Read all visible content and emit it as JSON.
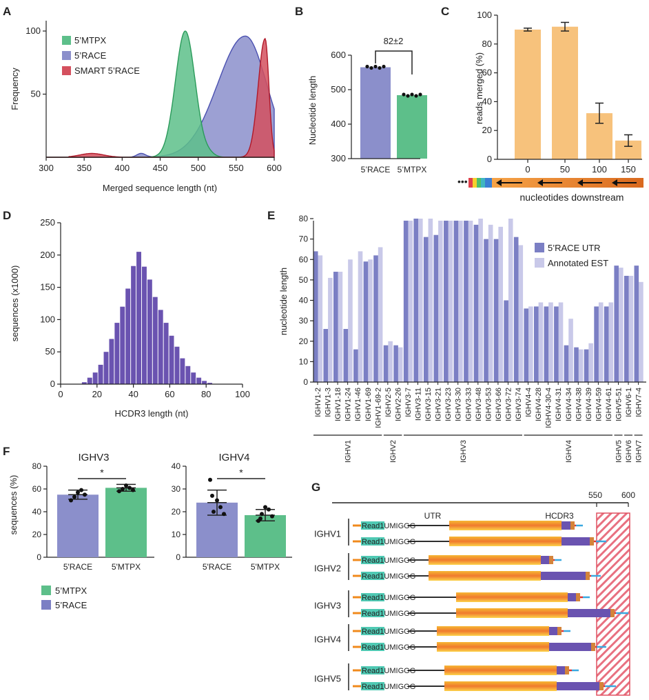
{
  "panels": {
    "A": "A",
    "B": "B",
    "C": "C",
    "D": "D",
    "E": "E",
    "F": "F",
    "G": "G"
  },
  "colors": {
    "mtpx": "#5dbf8a",
    "race": "#8b8fcb",
    "smart": "#d4505e",
    "orange": "#f7c27c",
    "purple": "#6a53b0",
    "lightpurple": "#c9c9e9",
    "hatch": "#e05060",
    "teal": "#4fc9b3",
    "blue": "#3aa8e0",
    "red": "#e03030"
  },
  "chart_data": [
    {
      "id": "A",
      "type": "area",
      "title": "",
      "xlabel": "Merged sequence length (nt)",
      "ylabel": "Frequency",
      "xlim": [
        300,
        600
      ],
      "ylim": [
        0,
        100
      ],
      "xticks": [
        "300",
        "350",
        "400",
        "450",
        "500",
        "550",
        "600"
      ],
      "yticks": [
        "50",
        "100"
      ],
      "legend": [
        "5’MTPX",
        "5’RACE",
        "SMART 5’RACE"
      ],
      "series": [
        {
          "name": "5’MTPX",
          "peak": 483,
          "width": 13,
          "height": 100
        },
        {
          "name": "5’RACE",
          "peak": 562,
          "width": 28,
          "height": 96
        },
        {
          "name": "SMART 5’RACE",
          "peak": 588,
          "width": 9,
          "height": 94
        }
      ]
    },
    {
      "id": "B",
      "type": "bar",
      "ylabel": "Nucleotide length",
      "categories": [
        "5’RACE",
        "5’MTPX"
      ],
      "values": [
        565,
        484
      ],
      "ylim": [
        300,
        600
      ],
      "yticks": [
        "300",
        "400",
        "500",
        "600"
      ],
      "annotation": "82±2"
    },
    {
      "id": "C",
      "type": "bar",
      "ylabel": "reads merged (%)",
      "xlabel": "nucleotides downstream",
      "categories": [
        "0",
        "50",
        "100",
        "150"
      ],
      "values": [
        90,
        92,
        32,
        13
      ],
      "errors": [
        1,
        3,
        7,
        4
      ],
      "ylim": [
        0,
        100
      ],
      "yticks": [
        "0",
        "20",
        "40",
        "60",
        "80",
        "100"
      ],
      "dots": "•••"
    },
    {
      "id": "D",
      "type": "bar",
      "xlabel": "HCDR3 length (nt)",
      "ylabel": "sequences (x1000)",
      "xlim": [
        0,
        100
      ],
      "ylim": [
        0,
        250
      ],
      "xticks": [
        "0",
        "20",
        "40",
        "60",
        "80",
        "100"
      ],
      "yticks": [
        "0",
        "50",
        "100",
        "150",
        "200",
        "250"
      ],
      "x": [
        13,
        16,
        19,
        22,
        25,
        28,
        31,
        34,
        37,
        40,
        43,
        46,
        49,
        52,
        55,
        58,
        61,
        64,
        67,
        70,
        73,
        76,
        79,
        82
      ],
      "values": [
        3,
        10,
        18,
        30,
        50,
        70,
        95,
        120,
        148,
        183,
        205,
        182,
        162,
        135,
        115,
        95,
        75,
        58,
        40,
        28,
        18,
        10,
        5,
        2
      ]
    },
    {
      "id": "E",
      "type": "bar",
      "ylabel": "nucleotide length",
      "ylim": [
        0,
        80
      ],
      "yticks": [
        "0",
        "10",
        "20",
        "30",
        "40",
        "50",
        "60",
        "70",
        "80"
      ],
      "legend": [
        "5’RACE UTR",
        "Annotated EST"
      ],
      "categories": [
        "IGHV1-2",
        "IGHV1-3",
        "IGHV1-18",
        "IGHV1-24",
        "IGHV1-46",
        "IGHV1-69",
        "IGHV1-69-2",
        "IGHV2-5",
        "IGHV2-26",
        "IGHV3-7",
        "IGHV3-11",
        "IGHV3-15",
        "IGHV3-21",
        "IGHV3-23",
        "IGHV3-30",
        "IGHV3-33",
        "IGHV3-48",
        "IGHV3-53",
        "IGHV3-66",
        "IGHV3-72",
        "IGHV3-74",
        "IGHV4-4",
        "IGHV4-28",
        "IGHV4-30-4",
        "IGHV4-31",
        "IGHV4-34",
        "IGHV4-38",
        "IGHV4-39",
        "IGHV4-59",
        "IGHV4-61",
        "IGHV5-51",
        "IGHV6-1",
        "IGHV7-4"
      ],
      "series": [
        {
          "name": "5’RACE UTR",
          "values": [
            64,
            26,
            54,
            26,
            16,
            59,
            62,
            18,
            18,
            79,
            80,
            71,
            72,
            79,
            79,
            79,
            77,
            70,
            70,
            40,
            71,
            36,
            37,
            37,
            37,
            18,
            17,
            16,
            37,
            37,
            57,
            52,
            57
          ]
        },
        {
          "name": "Annotated EST",
          "values": [
            62,
            51,
            54,
            60,
            64,
            60,
            66,
            20,
            17,
            79,
            80,
            80,
            79,
            79,
            79,
            79,
            80,
            77,
            76,
            80,
            67,
            37,
            39,
            39,
            39,
            31,
            16,
            19,
            39,
            39,
            56,
            52,
            49
          ]
        }
      ],
      "groups": [
        "IGHV1",
        "IGHV2",
        "IGHV3",
        "IGHV4",
        "IGHV5",
        "IGHV6",
        "IGHV7"
      ]
    },
    {
      "id": "F1",
      "type": "bar",
      "title": "IGHV3",
      "ylabel": "sequences (%)",
      "categories": [
        "5'RACE",
        "5'MTPX"
      ],
      "values": [
        55,
        61
      ],
      "errors": [
        4,
        3
      ],
      "ylim": [
        0,
        80
      ],
      "yticks": [
        "0",
        "20",
        "40",
        "60",
        "80"
      ],
      "annotation": "*",
      "points": [
        [
          50,
          53,
          57,
          59,
          55
        ],
        [
          58,
          60,
          63,
          61,
          59
        ]
      ]
    },
    {
      "id": "F2",
      "type": "bar",
      "title": "IGHV4",
      "categories": [
        "5'RACE",
        "5'MTPX"
      ],
      "values": [
        24,
        18.5
      ],
      "errors": [
        5.5,
        2.5
      ],
      "ylim": [
        0,
        40
      ],
      "yticks": [
        "0",
        "10",
        "20",
        "30",
        "40"
      ],
      "annotation": "*",
      "points": [
        [
          34,
          20,
          25,
          22,
          19,
          27
        ],
        [
          16,
          19,
          22,
          21,
          18,
          17
        ]
      ]
    }
  ],
  "F_legend": [
    "5’MTPX",
    "5’RACE"
  ],
  "G": {
    "scale": [
      "550",
      "600"
    ],
    "labels": {
      "utr": "UTR",
      "hcdr3": "HCDR3"
    },
    "read_label": "Read1UMIGGG",
    "genes": [
      "IGHV1",
      "IGHV2",
      "IGHV3",
      "IGHV4",
      "IGHV5"
    ]
  }
}
